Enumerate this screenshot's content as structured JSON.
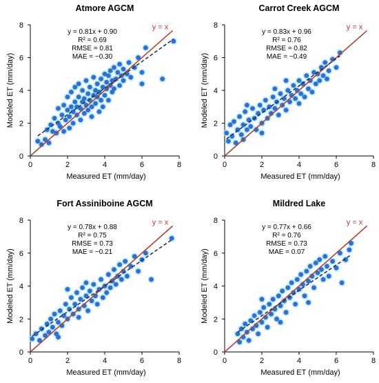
{
  "chart_data": [
    {
      "type": "scatter",
      "title": "Atmore AGCM",
      "xlabel": "Measured ET (mm/day)",
      "ylabel": "Modeled ET (mm/day)",
      "xlim": [
        0,
        8
      ],
      "ylim": [
        0,
        8
      ],
      "xticks": [
        "0",
        "2",
        "4",
        "6",
        "8"
      ],
      "yticks": [
        "0",
        "2",
        "4",
        "6",
        "8"
      ],
      "stats": [
        "y = 0.81x + 0.90",
        "R² = 0.69",
        "RMSE = 0.81",
        "MAE = −0.30"
      ],
      "one_to_one_label": "y = x",
      "regression": {
        "slope": 0.81,
        "intercept": 0.9
      },
      "point_color": "#2e6fd1",
      "point_halo": "#a6e3f5",
      "line_color": "#b5402b",
      "trend_color": "#1f3556",
      "points": [
        [
          0.4,
          0.9
        ],
        [
          0.6,
          0.7
        ],
        [
          0.8,
          1.0
        ],
        [
          0.9,
          1.6
        ],
        [
          1.0,
          0.8
        ],
        [
          1.1,
          1.9
        ],
        [
          1.2,
          1.5
        ],
        [
          1.3,
          2.3
        ],
        [
          1.4,
          1.4
        ],
        [
          1.5,
          2.0
        ],
        [
          1.5,
          2.9
        ],
        [
          1.6,
          1.8
        ],
        [
          1.7,
          2.5
        ],
        [
          1.8,
          1.5
        ],
        [
          1.8,
          3.1
        ],
        [
          1.9,
          2.2
        ],
        [
          2.0,
          2.8
        ],
        [
          2.0,
          3.6
        ],
        [
          2.1,
          1.7
        ],
        [
          2.1,
          2.4
        ],
        [
          2.2,
          3.0
        ],
        [
          2.2,
          3.9
        ],
        [
          2.3,
          2.0
        ],
        [
          2.3,
          2.7
        ],
        [
          2.4,
          3.3
        ],
        [
          2.4,
          4.2
        ],
        [
          2.5,
          2.5
        ],
        [
          2.5,
          3.0
        ],
        [
          2.6,
          3.6
        ],
        [
          2.6,
          4.4
        ],
        [
          2.7,
          2.2
        ],
        [
          2.7,
          2.9
        ],
        [
          2.8,
          3.3
        ],
        [
          2.8,
          4.0
        ],
        [
          2.9,
          2.6
        ],
        [
          2.9,
          3.5
        ],
        [
          3.0,
          3.1
        ],
        [
          3.0,
          4.6
        ],
        [
          3.1,
          2.8
        ],
        [
          3.1,
          3.8
        ],
        [
          3.2,
          3.4
        ],
        [
          3.2,
          4.2
        ],
        [
          3.3,
          2.4
        ],
        [
          3.3,
          3.0
        ],
        [
          3.4,
          3.7
        ],
        [
          3.4,
          4.8
        ],
        [
          3.5,
          3.2
        ],
        [
          3.5,
          4.0
        ],
        [
          3.6,
          3.6
        ],
        [
          3.6,
          4.4
        ],
        [
          3.7,
          2.7
        ],
        [
          3.7,
          3.9
        ],
        [
          3.8,
          3.4
        ],
        [
          3.8,
          4.7
        ],
        [
          3.9,
          3.0
        ],
        [
          3.9,
          4.2
        ],
        [
          4.0,
          3.7
        ],
        [
          4.0,
          5.0
        ],
        [
          4.1,
          4.1
        ],
        [
          4.1,
          4.5
        ],
        [
          4.2,
          3.4
        ],
        [
          4.2,
          4.9
        ],
        [
          4.3,
          4.3
        ],
        [
          4.3,
          5.2
        ],
        [
          4.4,
          3.9
        ],
        [
          4.4,
          4.6
        ],
        [
          4.5,
          4.1
        ],
        [
          4.5,
          5.4
        ],
        [
          4.6,
          4.7
        ],
        [
          4.7,
          5.1
        ],
        [
          4.8,
          4.3
        ],
        [
          4.8,
          5.6
        ],
        [
          4.9,
          4.9
        ],
        [
          5.0,
          5.3
        ],
        [
          5.0,
          4.6
        ],
        [
          5.2,
          5.0
        ],
        [
          5.3,
          5.7
        ],
        [
          5.4,
          4.8
        ],
        [
          5.6,
          5.4
        ],
        [
          5.8,
          6.0
        ],
        [
          6.0,
          4.4
        ],
        [
          6.0,
          5.1
        ],
        [
          6.2,
          6.6
        ],
        [
          7.1,
          4.7
        ],
        [
          7.7,
          7.0
        ]
      ]
    },
    {
      "type": "scatter",
      "title": "Carrot Creek AGCM",
      "xlabel": "Measured ET (mm/day)",
      "ylabel": "Modeled ET (mm/day)",
      "xlim": [
        0,
        8
      ],
      "ylim": [
        0,
        8
      ],
      "xticks": [
        "0",
        "2",
        "4",
        "6",
        "8"
      ],
      "yticks": [
        "0",
        "2",
        "4",
        "6",
        "8"
      ],
      "stats": [
        "y = 0.83x + 0.96",
        "R² = 0.76",
        "RMSE = 0.82",
        "MAE = −0.49"
      ],
      "one_to_one_label": "y = x",
      "regression": {
        "slope": 0.83,
        "intercept": 0.96
      },
      "point_color": "#2e6fd1",
      "point_halo": "#a6e3f5",
      "line_color": "#b5402b",
      "trend_color": "#1f3556",
      "points": [
        [
          0.1,
          1.4
        ],
        [
          0.2,
          0.9
        ],
        [
          0.3,
          1.9
        ],
        [
          0.4,
          1.2
        ],
        [
          0.5,
          2.1
        ],
        [
          0.6,
          0.8
        ],
        [
          0.7,
          1.6
        ],
        [
          0.8,
          2.4
        ],
        [
          0.9,
          1.3
        ],
        [
          1.0,
          1.9
        ],
        [
          1.1,
          2.7
        ],
        [
          1.2,
          1.6
        ],
        [
          1.3,
          2.2
        ],
        [
          1.4,
          1.8
        ],
        [
          1.5,
          2.9
        ],
        [
          1.6,
          2.3
        ],
        [
          1.7,
          1.6
        ],
        [
          1.8,
          2.6
        ],
        [
          1.9,
          3.1
        ],
        [
          2.0,
          2.0
        ],
        [
          2.1,
          2.8
        ],
        [
          2.2,
          3.4
        ],
        [
          2.3,
          2.3
        ],
        [
          2.4,
          3.0
        ],
        [
          2.5,
          2.6
        ],
        [
          2.6,
          3.6
        ],
        [
          2.7,
          2.9
        ],
        [
          2.8,
          3.3
        ],
        [
          2.9,
          2.5
        ],
        [
          3.0,
          3.8
        ],
        [
          3.1,
          3.1
        ],
        [
          3.2,
          3.5
        ],
        [
          3.3,
          2.8
        ],
        [
          3.4,
          4.0
        ],
        [
          3.5,
          3.3
        ],
        [
          3.6,
          3.7
        ],
        [
          3.7,
          4.3
        ],
        [
          3.8,
          3.5
        ],
        [
          3.9,
          4.0
        ],
        [
          4.0,
          3.2
        ],
        [
          4.0,
          4.6
        ],
        [
          4.1,
          3.8
        ],
        [
          4.2,
          4.4
        ],
        [
          4.3,
          3.6
        ],
        [
          4.4,
          4.9
        ],
        [
          4.5,
          4.1
        ],
        [
          4.6,
          4.6
        ],
        [
          4.7,
          3.9
        ],
        [
          4.8,
          5.1
        ],
        [
          4.9,
          4.4
        ],
        [
          5.0,
          5.0
        ],
        [
          5.1,
          4.6
        ],
        [
          5.2,
          5.4
        ],
        [
          5.3,
          4.9
        ],
        [
          5.4,
          5.7
        ],
        [
          5.5,
          4.7
        ],
        [
          5.6,
          5.2
        ],
        [
          5.8,
          5.9
        ],
        [
          6.0,
          5.4
        ],
        [
          6.2,
          6.3
        ],
        [
          1.2,
          3.1
        ],
        [
          2.7,
          4.1
        ],
        [
          3.3,
          4.6
        ],
        [
          2.0,
          1.4
        ],
        [
          1.0,
          1.0
        ]
      ]
    },
    {
      "type": "scatter",
      "title": "Fort Assiniboine AGCM",
      "xlabel": "Measured ET (mm/day)",
      "ylabel": "Modeled ET (mm/day)",
      "xlim": [
        0,
        8
      ],
      "ylim": [
        0,
        8
      ],
      "xticks": [
        "0",
        "2",
        "4",
        "6",
        "8"
      ],
      "yticks": [
        "0",
        "2",
        "4",
        "6",
        "8"
      ],
      "stats": [
        "y = 0.78x + 0.88",
        "R² = 0.75",
        "RMSE = 0.73",
        "MAE = −0.21"
      ],
      "one_to_one_label": "y = x",
      "regression": {
        "slope": 0.78,
        "intercept": 0.88
      },
      "point_color": "#2e6fd1",
      "point_halo": "#a6e3f5",
      "line_color": "#b5402b",
      "trend_color": "#1f3556",
      "points": [
        [
          0.1,
          0.8
        ],
        [
          0.3,
          1.1
        ],
        [
          0.5,
          0.7
        ],
        [
          0.6,
          1.4
        ],
        [
          0.8,
          1.0
        ],
        [
          0.9,
          1.7
        ],
        [
          1.0,
          1.2
        ],
        [
          1.1,
          2.0
        ],
        [
          1.2,
          1.5
        ],
        [
          1.3,
          2.3
        ],
        [
          1.4,
          1.1
        ],
        [
          1.5,
          1.8
        ],
        [
          1.6,
          2.5
        ],
        [
          1.7,
          1.6
        ],
        [
          1.8,
          2.2
        ],
        [
          1.9,
          2.9
        ],
        [
          2.0,
          2.0
        ],
        [
          2.1,
          2.6
        ],
        [
          2.2,
          3.3
        ],
        [
          2.3,
          2.3
        ],
        [
          2.4,
          2.9
        ],
        [
          2.5,
          3.6
        ],
        [
          2.6,
          2.6
        ],
        [
          2.7,
          3.2
        ],
        [
          2.8,
          3.9
        ],
        [
          2.9,
          2.8
        ],
        [
          3.0,
          3.4
        ],
        [
          3.1,
          2.5
        ],
        [
          3.2,
          3.7
        ],
        [
          3.3,
          3.1
        ],
        [
          3.4,
          4.1
        ],
        [
          3.5,
          3.4
        ],
        [
          3.6,
          2.9
        ],
        [
          3.7,
          3.8
        ],
        [
          3.8,
          4.4
        ],
        [
          3.9,
          3.3
        ],
        [
          4.0,
          4.0
        ],
        [
          4.1,
          3.6
        ],
        [
          4.2,
          4.7
        ],
        [
          4.3,
          3.9
        ],
        [
          4.4,
          4.3
        ],
        [
          4.5,
          5.0
        ],
        [
          4.6,
          4.1
        ],
        [
          4.7,
          4.6
        ],
        [
          4.8,
          5.3
        ],
        [
          4.9,
          4.4
        ],
        [
          5.0,
          4.9
        ],
        [
          5.1,
          5.5
        ],
        [
          5.2,
          4.6
        ],
        [
          5.4,
          5.2
        ],
        [
          5.6,
          5.8
        ],
        [
          5.8,
          4.9
        ],
        [
          6.0,
          5.6
        ],
        [
          6.2,
          6.0
        ],
        [
          6.5,
          4.4
        ],
        [
          7.6,
          6.9
        ],
        [
          2.0,
          3.8
        ],
        [
          3.0,
          4.2
        ],
        [
          1.5,
          0.9
        ],
        [
          2.6,
          2.1
        ]
      ]
    },
    {
      "type": "scatter",
      "title": "Mildred Lake",
      "xlabel": "Measured ET (mm/day)",
      "ylabel": "Modeled ET (mm/day)",
      "xlim": [
        0,
        8
      ],
      "ylim": [
        0,
        8
      ],
      "xticks": [
        "0",
        "2",
        "4",
        "6",
        "8"
      ],
      "yticks": [
        "0",
        "2",
        "4",
        "6",
        "8"
      ],
      "stats": [
        "y = 0.77x + 0.66",
        "R² = 0.76",
        "RMSE = 0.73",
        "MAE = 0.07"
      ],
      "one_to_one_label": "y = x",
      "regression": {
        "slope": 0.77,
        "intercept": 0.66
      },
      "point_color": "#2e6fd1",
      "point_halo": "#a6e3f5",
      "line_color": "#b5402b",
      "trend_color": "#1f3556",
      "points": [
        [
          0.7,
          1.1
        ],
        [
          0.8,
          0.6
        ],
        [
          0.9,
          1.4
        ],
        [
          1.0,
          0.9
        ],
        [
          1.1,
          1.7
        ],
        [
          1.2,
          1.2
        ],
        [
          1.3,
          0.7
        ],
        [
          1.4,
          1.9
        ],
        [
          1.5,
          1.4
        ],
        [
          1.6,
          2.2
        ],
        [
          1.7,
          1.6
        ],
        [
          1.8,
          1.1
        ],
        [
          1.9,
          2.4
        ],
        [
          2.0,
          1.8
        ],
        [
          2.1,
          2.7
        ],
        [
          2.2,
          2.1
        ],
        [
          2.3,
          1.5
        ],
        [
          2.4,
          2.9
        ],
        [
          2.5,
          2.3
        ],
        [
          2.6,
          3.2
        ],
        [
          2.7,
          2.6
        ],
        [
          2.8,
          2.0
        ],
        [
          2.9,
          3.4
        ],
        [
          3.0,
          2.8
        ],
        [
          3.1,
          3.7
        ],
        [
          3.2,
          3.1
        ],
        [
          3.3,
          2.4
        ],
        [
          3.4,
          3.9
        ],
        [
          3.5,
          3.3
        ],
        [
          3.6,
          4.2
        ],
        [
          3.7,
          3.6
        ],
        [
          3.8,
          2.9
        ],
        [
          3.9,
          4.4
        ],
        [
          4.0,
          3.8
        ],
        [
          4.1,
          4.7
        ],
        [
          4.2,
          4.1
        ],
        [
          4.3,
          3.4
        ],
        [
          4.4,
          4.9
        ],
        [
          4.5,
          4.3
        ],
        [
          4.6,
          5.2
        ],
        [
          4.7,
          4.6
        ],
        [
          4.8,
          3.9
        ],
        [
          4.9,
          5.4
        ],
        [
          5.0,
          4.8
        ],
        [
          5.1,
          5.6
        ],
        [
          5.2,
          5.0
        ],
        [
          5.3,
          4.4
        ],
        [
          5.4,
          5.8
        ],
        [
          5.5,
          5.2
        ],
        [
          5.6,
          4.6
        ],
        [
          5.8,
          5.5
        ],
        [
          6.0,
          5.1
        ],
        [
          6.2,
          6.0
        ],
        [
          6.3,
          4.2
        ],
        [
          6.5,
          5.6
        ],
        [
          6.7,
          6.2
        ],
        [
          6.8,
          6.6
        ],
        [
          3.0,
          1.8
        ],
        [
          2.0,
          3.2
        ],
        [
          4.5,
          3.0
        ]
      ]
    }
  ]
}
